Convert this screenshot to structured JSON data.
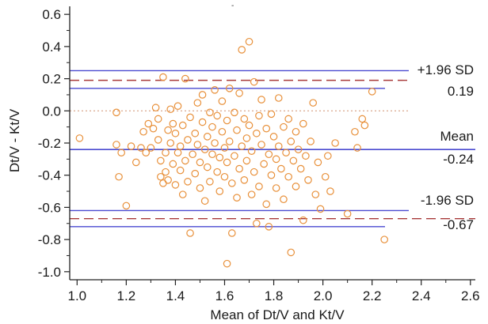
{
  "chart_data": {
    "type": "scatter",
    "title": "",
    "stray_mark": "-",
    "xlabel": "Mean of Dt/V and Kt/V",
    "ylabel": "Dt/V - Kt/V",
    "xlim": [
      0.97,
      2.62
    ],
    "ylim": [
      -1.05,
      0.65
    ],
    "x_ticks": [
      "1.0",
      "1.2",
      "1.4",
      "1.6",
      "1.8",
      "2.0",
      "2.2",
      "2.4",
      "2.6"
    ],
    "y_ticks": [
      "0.6",
      "0.4",
      "0.2",
      "0.0",
      "-0.2",
      "-0.4",
      "-0.6",
      "-0.8",
      "-1.0"
    ],
    "grid": false,
    "colors": {
      "points": "#e8903a",
      "limit_lines": "#4a4ad0",
      "ci_dashed": "#a83a3a",
      "zero_line": "#d09070",
      "axis": "#222222"
    },
    "reference_lines": {
      "upper": {
        "label": "+1.96 SD",
        "value_label": "0.19",
        "value": 0.19,
        "ci": [
          0.14,
          0.25
        ]
      },
      "mean": {
        "label": "Mean",
        "value_label": "-0.24",
        "value": -0.24
      },
      "lower": {
        "label": "-1.96 SD",
        "value_label": "-0.67",
        "value": -0.67,
        "ci": [
          -0.72,
          -0.62
        ]
      },
      "zero": {
        "value": 0.0
      }
    },
    "points": [
      [
        1.01,
        -0.17
      ],
      [
        1.16,
        -0.01
      ],
      [
        1.16,
        -0.21
      ],
      [
        1.17,
        -0.41
      ],
      [
        1.18,
        -0.26
      ],
      [
        1.2,
        -0.59
      ],
      [
        1.22,
        -0.22
      ],
      [
        1.24,
        -0.32
      ],
      [
        1.26,
        -0.23
      ],
      [
        1.27,
        -0.13
      ],
      [
        1.28,
        -0.26
      ],
      [
        1.29,
        -0.08
      ],
      [
        1.3,
        -0.23
      ],
      [
        1.31,
        -0.11
      ],
      [
        1.32,
        0.02
      ],
      [
        1.33,
        -0.05
      ],
      [
        1.33,
        -0.18
      ],
      [
        1.34,
        -0.31
      ],
      [
        1.34,
        -0.41
      ],
      [
        1.35,
        0.21
      ],
      [
        1.35,
        -0.45
      ],
      [
        1.36,
        -0.38
      ],
      [
        1.36,
        -0.26
      ],
      [
        1.37,
        -0.12
      ],
      [
        1.37,
        -0.43
      ],
      [
        1.38,
        0.01
      ],
      [
        1.38,
        -0.2
      ],
      [
        1.39,
        -0.08
      ],
      [
        1.39,
        -0.33
      ],
      [
        1.4,
        -0.46
      ],
      [
        1.4,
        -0.14
      ],
      [
        1.41,
        -0.26
      ],
      [
        1.41,
        0.03
      ],
      [
        1.42,
        -0.37
      ],
      [
        1.42,
        -0.22
      ],
      [
        1.43,
        -0.09
      ],
      [
        1.43,
        -0.52
      ],
      [
        1.44,
        -0.31
      ],
      [
        1.44,
        0.2
      ],
      [
        1.45,
        -0.18
      ],
      [
        1.45,
        -0.44
      ],
      [
        1.46,
        -0.76
      ],
      [
        1.46,
        -0.04
      ],
      [
        1.47,
        -0.27
      ],
      [
        1.48,
        -0.14
      ],
      [
        1.48,
        -0.39
      ],
      [
        1.49,
        0.05
      ],
      [
        1.49,
        -0.21
      ],
      [
        1.5,
        -0.32
      ],
      [
        1.5,
        -0.48
      ],
      [
        1.51,
        -0.07
      ],
      [
        1.51,
        0.1
      ],
      [
        1.52,
        -0.24
      ],
      [
        1.52,
        -0.56
      ],
      [
        1.53,
        -0.16
      ],
      [
        1.53,
        -0.35
      ],
      [
        1.54,
        -0.01
      ],
      [
        1.54,
        -0.44
      ],
      [
        1.55,
        -0.27
      ],
      [
        1.55,
        -0.1
      ],
      [
        1.56,
        0.13
      ],
      [
        1.56,
        -0.2
      ],
      [
        1.57,
        -0.38
      ],
      [
        1.57,
        -0.03
      ],
      [
        1.58,
        -0.29
      ],
      [
        1.58,
        -0.5
      ],
      [
        1.59,
        -0.13
      ],
      [
        1.59,
        0.06
      ],
      [
        1.6,
        -0.23
      ],
      [
        1.6,
        -0.41
      ],
      [
        1.61,
        -0.06
      ],
      [
        1.61,
        -0.32
      ],
      [
        1.61,
        -0.95
      ],
      [
        1.62,
        0.14
      ],
      [
        1.62,
        -0.19
      ],
      [
        1.63,
        -0.76
      ],
      [
        1.63,
        -0.45
      ],
      [
        1.64,
        -0.01
      ],
      [
        1.64,
        -0.28
      ],
      [
        1.65,
        -0.12
      ],
      [
        1.65,
        -0.54
      ],
      [
        1.66,
        0.11
      ],
      [
        1.66,
        -0.36
      ],
      [
        1.67,
        -0.22
      ],
      [
        1.67,
        0.38
      ],
      [
        1.68,
        -0.05
      ],
      [
        1.68,
        -0.43
      ],
      [
        1.69,
        -0.17
      ],
      [
        1.69,
        -0.31
      ],
      [
        1.7,
        0.43
      ],
      [
        1.7,
        -0.09
      ],
      [
        1.71,
        -0.52
      ],
      [
        1.71,
        -0.25
      ],
      [
        1.72,
        0.18
      ],
      [
        1.72,
        -0.38
      ],
      [
        1.73,
        -0.7
      ],
      [
        1.73,
        -0.14
      ],
      [
        1.74,
        -0.03
      ],
      [
        1.74,
        -0.47
      ],
      [
        1.75,
        -0.21
      ],
      [
        1.75,
        0.07
      ],
      [
        1.76,
        -0.33
      ],
      [
        1.77,
        -0.58
      ],
      [
        1.77,
        -0.11
      ],
      [
        1.78,
        -0.72
      ],
      [
        1.78,
        -0.27
      ],
      [
        1.79,
        -0.02
      ],
      [
        1.79,
        -0.4
      ],
      [
        1.8,
        -0.16
      ],
      [
        1.81,
        -0.3
      ],
      [
        1.81,
        -0.48
      ],
      [
        1.82,
        0.08
      ],
      [
        1.82,
        -0.22
      ],
      [
        1.83,
        -0.36
      ],
      [
        1.84,
        -0.1
      ],
      [
        1.84,
        -0.55
      ],
      [
        1.85,
        -0.26
      ],
      [
        1.86,
        -0.05
      ],
      [
        1.86,
        -0.41
      ],
      [
        1.87,
        -0.88
      ],
      [
        1.87,
        -0.19
      ],
      [
        1.88,
        -0.31
      ],
      [
        1.89,
        -0.13
      ],
      [
        1.89,
        -0.47
      ],
      [
        1.9,
        -0.24
      ],
      [
        1.91,
        -0.36
      ],
      [
        1.92,
        -0.68
      ],
      [
        1.92,
        -0.08
      ],
      [
        1.93,
        -0.28
      ],
      [
        1.94,
        -0.43
      ],
      [
        1.95,
        -0.19
      ],
      [
        1.96,
        0.05
      ],
      [
        1.97,
        -0.52
      ],
      [
        1.98,
        -0.32
      ],
      [
        1.99,
        -0.61
      ],
      [
        2.01,
        -0.41
      ],
      [
        2.02,
        -0.28
      ],
      [
        2.03,
        -0.5
      ],
      [
        2.05,
        -0.2
      ],
      [
        2.1,
        -0.64
      ],
      [
        2.13,
        -0.13
      ],
      [
        2.14,
        -0.23
      ],
      [
        2.16,
        -0.05
      ],
      [
        2.17,
        -0.09
      ],
      [
        2.2,
        0.12
      ],
      [
        2.25,
        -0.8
      ]
    ]
  }
}
